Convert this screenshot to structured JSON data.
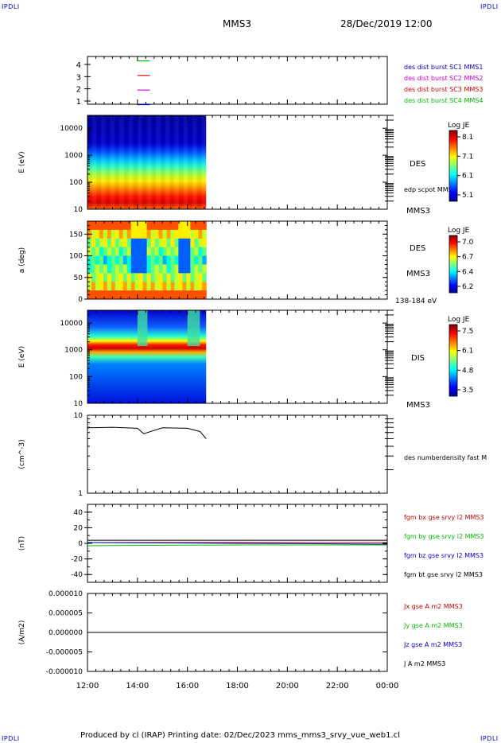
{
  "corner_label": "IPDLI",
  "header": {
    "spacecraft": "MMS3",
    "datetime": "28/Dec/2019 12:00"
  },
  "footer": {
    "text": "Produced by cl (IRAP)   Printing date: 02/Dec/2023   mms_mms3_srvy_vue_web1.cl"
  },
  "x_axis": {
    "ticks": [
      "12:00",
      "14:00",
      "16:00",
      "18:00",
      "20:00",
      "22:00",
      "00:00"
    ],
    "range_hours": [
      12,
      24
    ]
  },
  "colors": {
    "sc1": "#0000cc",
    "sc2": "#cc00cc",
    "sc3": "#cc0000",
    "sc4": "#00bb00",
    "black": "#000000"
  },
  "panels": {
    "burst": {
      "yticks": [
        "4",
        "3",
        "2",
        "1"
      ],
      "legend": [
        "des dist burst SC1 MMS1",
        "des dist burst SC2 MMS2",
        "des dist burst SC3 MMS3",
        "des dist burst SC4 MMS4"
      ],
      "marks": [
        {
          "level": 4,
          "color": "#00bb00"
        },
        {
          "level": 3,
          "color": "#cc0000"
        },
        {
          "level": 2,
          "color": "#cc00cc"
        },
        {
          "level": 1,
          "color": "#0000cc"
        }
      ]
    },
    "des_energy": {
      "ylabel": "E (eV)",
      "yticks": [
        "10000",
        "1000",
        "100",
        "10"
      ],
      "yrange": [
        10,
        30000
      ],
      "log": true,
      "label": "DES",
      "sublabel": "edp scpot MMS3",
      "sat": "MMS3",
      "cbar_title": "Log JE",
      "cbar_ticks": [
        "8.1",
        "7.1",
        "6.1",
        "5.1"
      ]
    },
    "des_pitch": {
      "ylabel": "a (deg)",
      "yticks": [
        "150",
        "100",
        "50",
        "0"
      ],
      "yrange": [
        0,
        180
      ],
      "label": "DES",
      "sat": "MMS3",
      "energy_range": "138-184 eV",
      "cbar_title": "Log JE",
      "cbar_ticks": [
        "7.0",
        "6.7",
        "6.4",
        "6.2"
      ]
    },
    "dis_energy": {
      "ylabel": "E (eV)",
      "yticks": [
        "10000",
        "1000",
        "100",
        "10"
      ],
      "yrange": [
        10,
        30000
      ],
      "log": true,
      "label": "DIS",
      "sat": "MMS3",
      "cbar_title": "Log JE",
      "cbar_ticks": [
        "7.5",
        "6.1",
        "4.8",
        "3.5"
      ]
    },
    "density": {
      "ylabel": "(cm^-3)",
      "yticks": [
        "10",
        "1"
      ],
      "yrange": [
        1,
        10
      ],
      "log": true,
      "legend": "des numberdensity fast M"
    },
    "bfield": {
      "ylabel": "(nT)",
      "yticks": [
        "40",
        "20",
        "0",
        "-20",
        "-40"
      ],
      "yrange": [
        -50,
        50
      ],
      "legend": [
        {
          "text": "fgm bx gse srvy l2 MMS3",
          "color": "#cc0000"
        },
        {
          "text": "fgm by gse srvy l2 MMS3",
          "color": "#00bb00"
        },
        {
          "text": "fgm bz gse srvy l2 MMS3",
          "color": "#0000cc"
        },
        {
          "text": "fgm bt gse srvy l2 MMS3",
          "color": "#000000"
        }
      ]
    },
    "current": {
      "ylabel": "(A/m2)",
      "yticks": [
        "0.000010",
        "0.000005",
        "0.000000",
        "-0.000005",
        "-0.000010"
      ],
      "yrange": [
        -1e-05,
        1e-05
      ],
      "legend": [
        {
          "text": "Jx gse A m2 MMS3",
          "color": "#cc0000"
        },
        {
          "text": "Jy gse A m2 MMS3",
          "color": "#00bb00"
        },
        {
          "text": "Jz gse A m2 MMS3",
          "color": "#0000cc"
        },
        {
          "text": "J A m2 MMS3",
          "color": "#000000"
        }
      ]
    }
  },
  "chart_data": [
    {
      "type": "line",
      "title": "des dist burst",
      "x_range": [
        "12:00",
        "00:00"
      ],
      "series": [
        {
          "name": "des dist burst SC1 MMS1",
          "x": [
            "14:00",
            "14:30"
          ],
          "y": [
            1,
            1
          ]
        },
        {
          "name": "des dist burst SC2 MMS2",
          "x": [
            "14:00",
            "14:30"
          ],
          "y": [
            2,
            2
          ]
        },
        {
          "name": "des dist burst SC3 MMS3",
          "x": [
            "14:00",
            "14:30"
          ],
          "y": [
            3,
            3
          ]
        },
        {
          "name": "des dist burst SC4 MMS4",
          "x": [
            "14:00",
            "14:30"
          ],
          "y": [
            4,
            4
          ]
        }
      ]
    },
    {
      "type": "heatmap",
      "title": "DES",
      "ylabel": "E (eV)",
      "ylim": [
        10,
        30000
      ],
      "colorbar": "Log JE",
      "crange": [
        5.1,
        8.1
      ],
      "data_end": "16:45"
    },
    {
      "type": "heatmap",
      "title": "DES 138-184 eV",
      "ylabel": "a (deg)",
      "ylim": [
        0,
        180
      ],
      "colorbar": "Log JE",
      "crange": [
        6.2,
        7.0
      ],
      "data_end": "16:45"
    },
    {
      "type": "heatmap",
      "title": "DIS",
      "ylabel": "E (eV)",
      "ylim": [
        10,
        30000
      ],
      "colorbar": "Log JE",
      "crange": [
        3.5,
        7.5
      ],
      "data_end": "16:45"
    },
    {
      "type": "line",
      "ylabel": "(cm^-3)",
      "ylim": [
        1,
        10
      ],
      "series": [
        {
          "name": "des numberdensity fast M",
          "x": [
            "12:00",
            "13:00",
            "14:00",
            "14:15",
            "15:00",
            "16:00",
            "16:30",
            "16:45"
          ],
          "y": [
            6.9,
            7.0,
            6.8,
            5.8,
            6.9,
            6.8,
            6.2,
            5.0
          ]
        }
      ]
    },
    {
      "type": "line",
      "ylabel": "(nT)",
      "ylim": [
        -50,
        50
      ],
      "series": [
        {
          "name": "fgm bx gse srvy l2 MMS3",
          "x": [
            "12:00",
            "18:00",
            "24:00"
          ],
          "y": [
            1,
            1,
            1
          ]
        },
        {
          "name": "fgm by gse srvy l2 MMS3",
          "x": [
            "12:00",
            "18:00",
            "24:00"
          ],
          "y": [
            -3,
            -2,
            -2
          ]
        },
        {
          "name": "fgm bz gse srvy l2 MMS3",
          "x": [
            "12:00",
            "18:00",
            "24:00"
          ],
          "y": [
            1,
            0,
            -1
          ]
        },
        {
          "name": "fgm bt gse srvy l2 MMS3",
          "x": [
            "12:00",
            "18:00",
            "24:00"
          ],
          "y": [
            4,
            4,
            4
          ]
        }
      ]
    },
    {
      "type": "line",
      "ylabel": "(A/m2)",
      "ylim": [
        -1e-05,
        1e-05
      ],
      "series": [
        {
          "name": "J A m2 MMS3",
          "x": [
            "12:00",
            "24:00"
          ],
          "y": [
            0,
            0
          ]
        }
      ]
    }
  ]
}
